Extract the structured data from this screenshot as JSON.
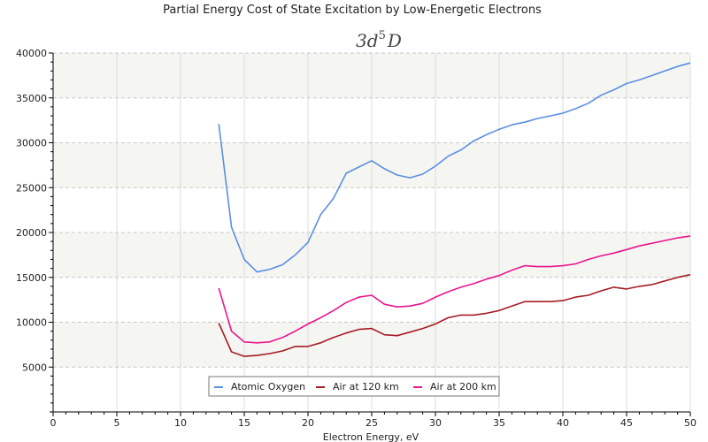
{
  "chart_data": {
    "type": "line",
    "title": "Partial Energy Cost of State Excitation by Low-Energetic Electrons",
    "subtitle": {
      "base": "3d",
      "superscript": "5",
      "suffix": "D"
    },
    "xlabel": "Electron Energy, eV",
    "ylabel": "",
    "xlim": [
      0,
      50
    ],
    "ylim": [
      0,
      40000
    ],
    "xticks": [
      0,
      5,
      10,
      15,
      20,
      25,
      30,
      35,
      40,
      45,
      50
    ],
    "yticks": [
      5000,
      10000,
      15000,
      20000,
      25000,
      30000,
      35000,
      40000
    ],
    "grid": true,
    "legend_position": "bottom-center",
    "x": [
      13,
      14,
      15,
      16,
      17,
      18,
      19,
      20,
      21,
      22,
      23,
      24,
      25,
      26,
      27,
      28,
      29,
      30,
      31,
      32,
      33,
      34,
      35,
      36,
      37,
      38,
      39,
      40,
      41,
      42,
      43,
      44,
      45,
      46,
      47,
      48,
      49,
      50
    ],
    "series": [
      {
        "name": "Atomic Oxygen",
        "color": "#5b8fe0",
        "values": [
          32100,
          20600,
          17000,
          15600,
          15900,
          16400,
          17500,
          18900,
          22000,
          23800,
          26600,
          27300,
          28000,
          27100,
          26400,
          26100,
          26500,
          27400,
          28500,
          29200,
          30200,
          30900,
          31500,
          32000,
          32300,
          32700,
          33000,
          33300,
          33800,
          34400,
          35300,
          35900,
          36600,
          37000,
          37500,
          38000,
          38500,
          38900
        ]
      },
      {
        "name": "Air at 120 km",
        "color": "#a61c24",
        "values": [
          9900,
          6700,
          6200,
          6300,
          6500,
          6800,
          7300,
          7300,
          7700,
          8300,
          8800,
          9200,
          9300,
          8600,
          8500,
          8900,
          9300,
          9800,
          10500,
          10800,
          10800,
          11000,
          11300,
          11800,
          12300,
          12300,
          12300,
          12400,
          12800,
          13000,
          13500,
          13900,
          13700,
          14000,
          14200,
          14600,
          15000,
          15300
        ]
      },
      {
        "name": "Air at 200 km",
        "color": "#e8168f",
        "values": [
          13800,
          9000,
          7800,
          7700,
          7800,
          8300,
          9000,
          9800,
          10500,
          11300,
          12200,
          12800,
          13000,
          12000,
          11700,
          11800,
          12100,
          12800,
          13400,
          13900,
          14300,
          14800,
          15200,
          15800,
          16300,
          16200,
          16200,
          16300,
          16500,
          17000,
          17400,
          17700,
          18100,
          18500,
          18800,
          19100,
          19400,
          19600
        ]
      }
    ]
  }
}
